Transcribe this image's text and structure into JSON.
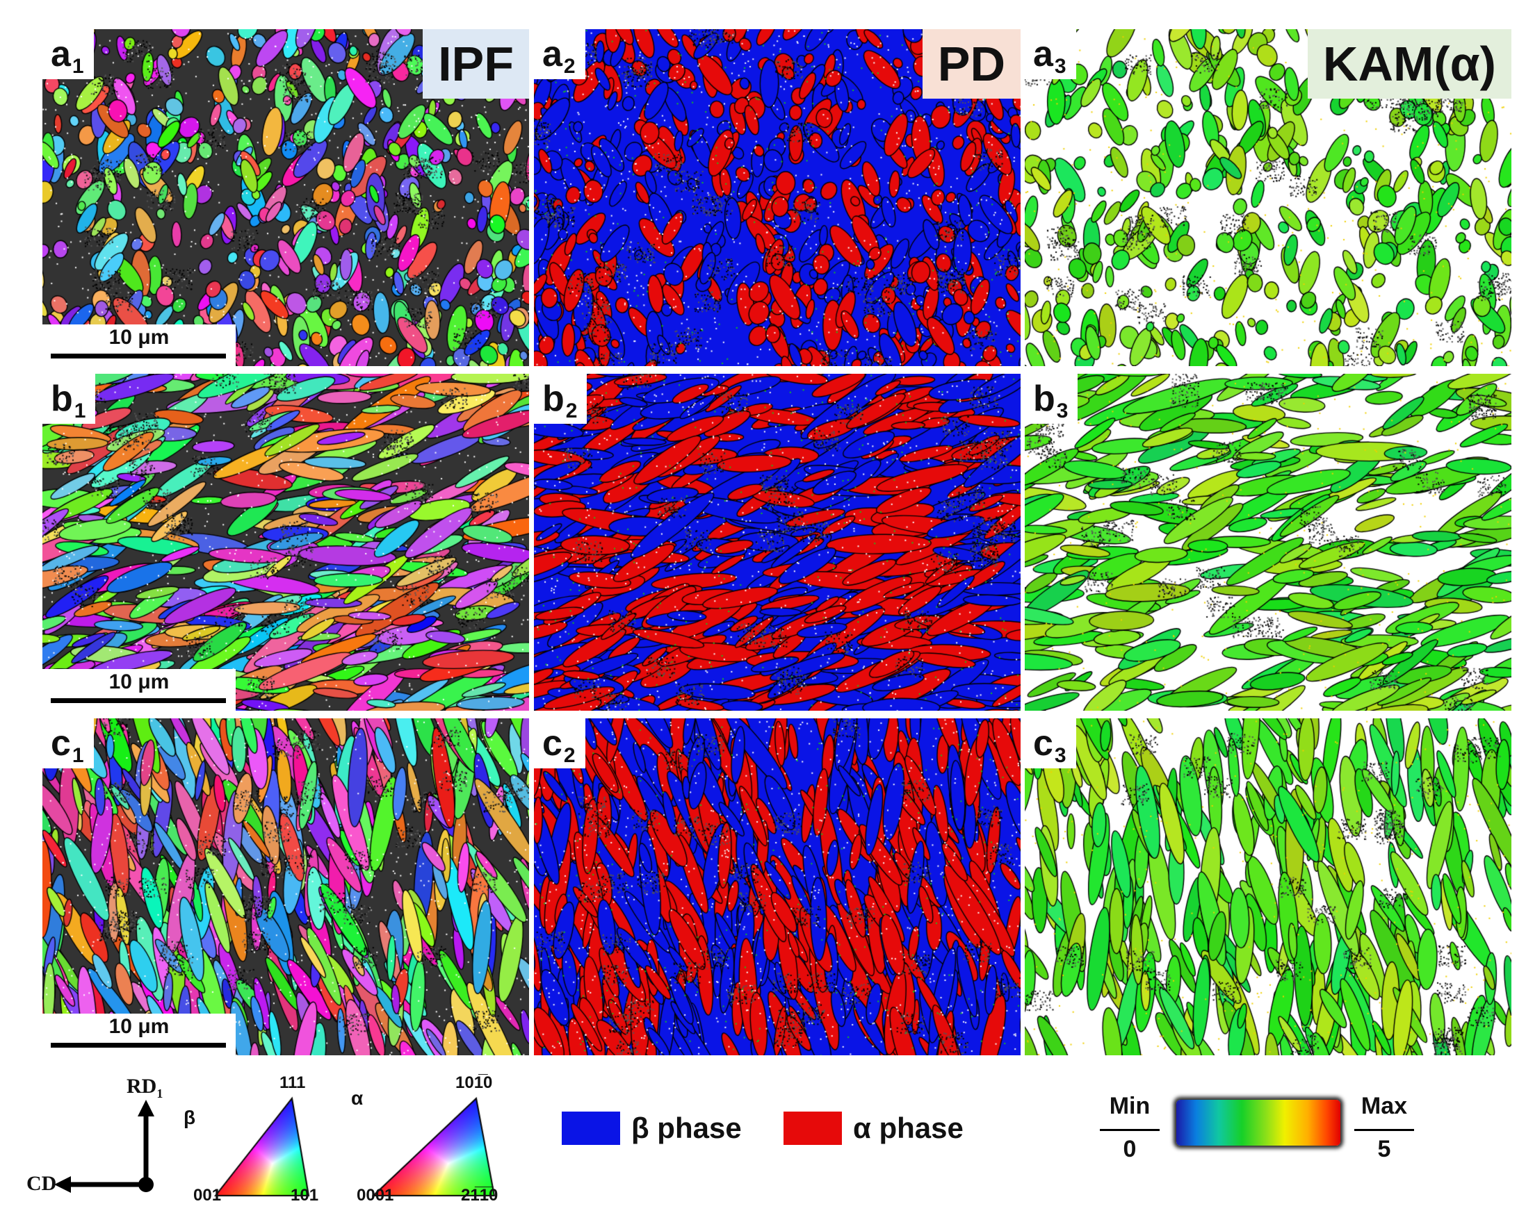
{
  "panels": [
    {
      "label": "a",
      "sub": "1",
      "map": "ipf",
      "tag": "IPF",
      "tagColor": "#dde8f4",
      "scale": "10 μm",
      "seed": 11
    },
    {
      "label": "a",
      "sub": "2",
      "map": "pd",
      "tag": "PD",
      "tagColor": "#f8e0d5",
      "scale": "",
      "seed": 12
    },
    {
      "label": "a",
      "sub": "3",
      "map": "kam",
      "tag": "KAM(α)",
      "tagColor": "#e3efdc",
      "scale": "",
      "seed": 13
    },
    {
      "label": "b",
      "sub": "1",
      "map": "ipf",
      "tag": "",
      "tagColor": "",
      "scale": "10 μm",
      "seed": 21
    },
    {
      "label": "b",
      "sub": "2",
      "map": "pd",
      "tag": "",
      "tagColor": "",
      "scale": "",
      "seed": 22
    },
    {
      "label": "b",
      "sub": "3",
      "map": "kam",
      "tag": "",
      "tagColor": "",
      "scale": "",
      "seed": 23
    },
    {
      "label": "c",
      "sub": "1",
      "map": "ipf",
      "tag": "",
      "tagColor": "",
      "scale": "10 μm",
      "seed": 31
    },
    {
      "label": "c",
      "sub": "2",
      "map": "pd",
      "tag": "",
      "tagColor": "",
      "scale": "",
      "seed": 32
    },
    {
      "label": "c",
      "sub": "3",
      "map": "kam",
      "tag": "",
      "tagColor": "",
      "scale": "",
      "seed": 33
    }
  ],
  "axes": {
    "vertical": "RD",
    "vertical_sub": "1",
    "horizontal": "CD"
  },
  "ipf_beta": {
    "symbol": "β",
    "top": "111",
    "left": "001",
    "right": "101"
  },
  "ipf_alpha": {
    "symbol": "α",
    "top": "100̅ 1̅ 0",
    "top_display": "101̅0",
    "left": "0001",
    "right": "21̅1̅0"
  },
  "phase_legend": [
    {
      "label": "β phase",
      "color": "#0a14e6"
    },
    {
      "label": "α phase",
      "color": "#e60a0a"
    }
  ],
  "kam_legend": {
    "min_label": "Min",
    "min_value": "0",
    "max_label": "Max",
    "max_value": "5"
  }
}
